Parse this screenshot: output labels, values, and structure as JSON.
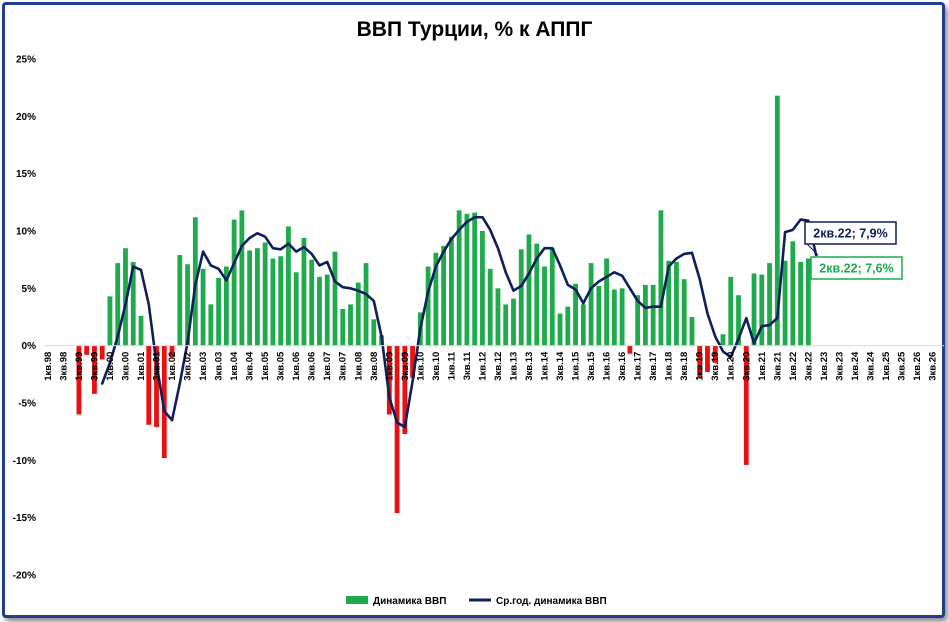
{
  "chart_data": {
    "type": "bar",
    "title": "ВВП Турции, % к АППГ",
    "xlabel": "",
    "ylabel": "",
    "ylim": [
      -20,
      25
    ],
    "y_ticks": [
      -20,
      -15,
      -10,
      -5,
      0,
      5,
      10,
      15,
      20,
      25
    ],
    "y_tick_labels": [
      "-20%",
      "-15%",
      "-10%",
      "-5%",
      "0%",
      "5%",
      "10%",
      "15%",
      "20%",
      "25%"
    ],
    "x_tick_labels": [
      "1кв.98",
      "3кв.98",
      "1кв.99",
      "3кв.99",
      "1кв.00",
      "3кв.00",
      "1кв.01",
      "3кв.01",
      "1кв.02",
      "3кв.02",
      "1кв.03",
      "3кв.03",
      "1кв.04",
      "3кв.04",
      "1кв.05",
      "3кв.05",
      "1кв.06",
      "3кв.06",
      "1кв.07",
      "3кв.07",
      "1кв.08",
      "3кв.08",
      "1кв.09",
      "3кв.09",
      "1кв.10",
      "3кв.10",
      "1кв.11",
      "3кв.11",
      "1кв.12",
      "3кв.12",
      "1кв.13",
      "3кв.13",
      "1кв.14",
      "3кв.14",
      "1кв.15",
      "3кв.15",
      "1кв.16",
      "3кв.16",
      "1кв.17",
      "3кв.17",
      "1кв.18",
      "3кв.18",
      "1кв.19",
      "3кв.19",
      "1кв.20",
      "3кв.20",
      "1кв.21",
      "3кв.21",
      "1кв.22",
      "3кв.22",
      "1кв.23",
      "3кв.23",
      "1кв.24",
      "3кв.24",
      "1кв.25",
      "3кв.25",
      "1кв.26",
      "3кв.26"
    ],
    "positive_color": "#1fab4b",
    "negative_color": "#e81010",
    "line_color": "#0d1f5c",
    "grid": false,
    "legend_position": "bottom",
    "series": [
      {
        "name": "Динамика ВВП",
        "type": "bar",
        "start_index": 4,
        "values": [
          -6.0,
          -0.8,
          -4.2,
          -1.2,
          4.3,
          7.2,
          8.5,
          7.3,
          2.6,
          -6.9,
          -7.1,
          -9.8,
          -1.0,
          7.9,
          7.1,
          11.2,
          6.7,
          3.6,
          5.9,
          6.9,
          11.0,
          11.8,
          8.3,
          8.5,
          9.0,
          7.6,
          7.8,
          10.4,
          6.4,
          9.4,
          7.5,
          6.0,
          6.2,
          8.2,
          3.2,
          3.6,
          5.5,
          7.2,
          2.3,
          0.9,
          -6.0,
          -14.6,
          -7.7,
          -2.8,
          2.9,
          6.9,
          8.1,
          8.7,
          9.5,
          11.8,
          11.5,
          11.6,
          10.0,
          6.7,
          5.0,
          3.6,
          4.1,
          8.4,
          9.7,
          8.9,
          6.9,
          8.5,
          2.8,
          3.4,
          5.4,
          3.6,
          7.2,
          5.2,
          7.6,
          4.9,
          5.0,
          -0.7,
          4.4,
          5.3,
          5.3,
          11.8,
          7.4,
          7.3,
          5.8,
          2.5,
          -2.8,
          -2.3,
          -1.5,
          1.0,
          6.0,
          4.4,
          -10.4,
          6.3,
          6.2,
          7.2,
          21.8,
          7.4,
          9.1,
          7.3,
          7.6
        ]
      },
      {
        "name": "Ср.год. динамика ВВП",
        "type": "line",
        "start_index": 7,
        "values": [
          -3.3,
          -1.5,
          0.8,
          3.6,
          6.9,
          6.6,
          3.6,
          -1.6,
          -5.7,
          -6.5,
          -3.3,
          0.3,
          5.3,
          8.2,
          7.0,
          6.7,
          5.7,
          7.2,
          8.7,
          9.4,
          9.8,
          9.5,
          8.5,
          8.4,
          8.9,
          8.2,
          8.6,
          8.0,
          7.0,
          7.3,
          5.6,
          5.1,
          5.0,
          4.8,
          4.5,
          3.9,
          0.8,
          -4.5,
          -6.7,
          -7.1,
          -3.1,
          1.5,
          4.7,
          6.9,
          8.2,
          9.3,
          10.1,
          10.8,
          11.2,
          11.2,
          10.1,
          8.5,
          6.4,
          4.8,
          5.2,
          6.3,
          7.6,
          8.5,
          8.5,
          7.0,
          5.3,
          4.9,
          3.7,
          5.0,
          5.6,
          6.0,
          6.4,
          6.1,
          5.0,
          3.9,
          3.3,
          3.4,
          3.4,
          6.9,
          7.6,
          8.0,
          8.1,
          5.8,
          2.8,
          0.8,
          -0.5,
          -1.0,
          0.6,
          2.4,
          0.2,
          1.7,
          1.8,
          2.4,
          9.9,
          10.1,
          11.0,
          10.9,
          7.9
        ]
      }
    ],
    "annotations": [
      {
        "text": "2кв.22; 7,9%",
        "series": "Ср.год. динамика ВВП",
        "color": "#0d1f5c"
      },
      {
        "text": "2кв.22; 7,6%",
        "series": "Динамика ВВП",
        "color": "#1fab4b"
      }
    ]
  }
}
